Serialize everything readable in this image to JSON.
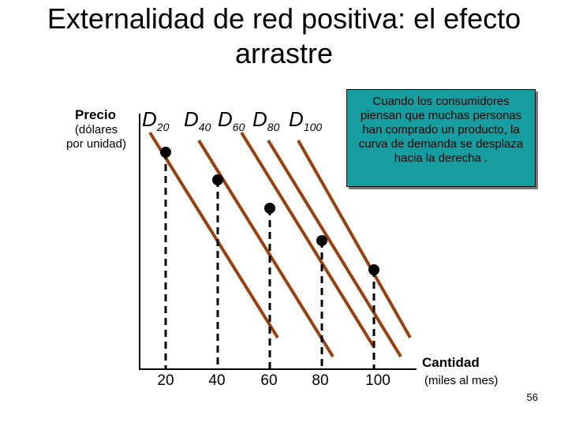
{
  "title": {
    "line1": "Externalidad de red positiva: el efecto",
    "line2": "arrastre"
  },
  "y_axis": {
    "label": "Precio",
    "sublabel_line1": "(dólares",
    "sublabel_line2": "por unidad)"
  },
  "x_axis": {
    "label": "Cantidad",
    "sublabel": "(miles al mes)",
    "ticks": [
      "20",
      "40",
      "60",
      "80",
      "100"
    ]
  },
  "curves": [
    {
      "base": "D",
      "sub": "20"
    },
    {
      "base": "D",
      "sub": "40"
    },
    {
      "base": "D",
      "sub": "60"
    },
    {
      "base": "D",
      "sub": "80"
    },
    {
      "base": "D",
      "sub": "100"
    }
  ],
  "callout": {
    "text": "Cuando los consumidores piensan que muchas personas han comprado un producto, la curva de demanda se desplaza hacia la derecha ."
  },
  "page_number": "56",
  "colors": {
    "curve": "#9b3f0c",
    "callout_bg": "#159d9f",
    "axis": "#000000"
  }
}
